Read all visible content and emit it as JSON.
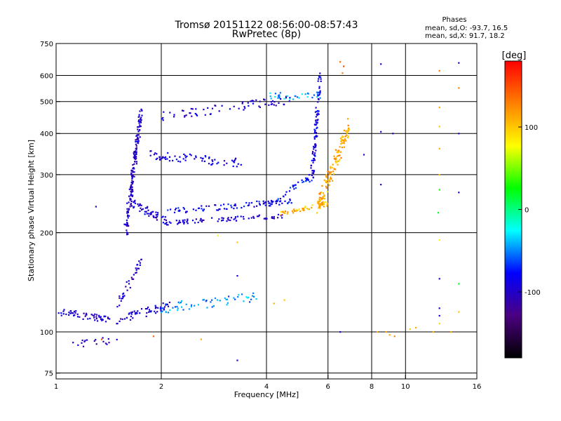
{
  "chart_data": {
    "type": "scatter",
    "title": "Tromsø 20151122 08:56:00-08:57:43",
    "subtitle": "RwPretec (8p)",
    "xlabel": "Frequency [MHz]",
    "ylabel": "Stationary phase Virtual Height [km]",
    "x_scale": "log",
    "y_scale": "log",
    "xlim": [
      1,
      16
    ],
    "ylim": [
      72,
      750
    ],
    "x_ticks": [
      1,
      2,
      4,
      6,
      8,
      10,
      16
    ],
    "x_tick_labels": [
      "1",
      "2",
      "4",
      "6",
      "8",
      "10",
      "16"
    ],
    "y_ticks": [
      75,
      100,
      200,
      300,
      400,
      500,
      600,
      750
    ],
    "y_tick_labels": [
      "75",
      "100",
      "200",
      "300",
      "400",
      "500",
      "600",
      "750"
    ],
    "grid": true,
    "phases_box": {
      "header": "Phases",
      "line_o": "mean, sd,O: -93.7, 16.5",
      "line_x": "mean, sd,X:  91.7, 18.2"
    },
    "colorbar": {
      "title": "[deg]",
      "range": [
        -180,
        180
      ],
      "tick_values": [
        100,
        0,
        -100
      ],
      "tick_labels": [
        "100",
        "0",
        "-100"
      ],
      "colors": [
        "#ff0000",
        "#ff8000",
        "#ffff00",
        "#00ff00",
        "#00ffff",
        "#0000ff",
        "#4b0082",
        "#000000"
      ]
    },
    "traces": [
      {
        "f0": 1.0,
        "f1": 1.55,
        "h0": 115,
        "h1": 108,
        "phase": -100,
        "n": 60,
        "spread": 0.025
      },
      {
        "f0": 1.1,
        "f1": 1.5,
        "h0": 92,
        "h1": 95,
        "phase": -105,
        "n": 18,
        "spread": 0.03
      },
      {
        "f0": 1.5,
        "f1": 1.75,
        "h0": 120,
        "h1": 165,
        "phase": -100,
        "n": 35,
        "spread": 0.03
      },
      {
        "f0": 1.55,
        "f1": 2.1,
        "h0": 110,
        "h1": 120,
        "phase": -95,
        "n": 50,
        "spread": 0.03
      },
      {
        "f0": 2.0,
        "f1": 3.8,
        "h0": 118,
        "h1": 128,
        "phase": -45,
        "n": 60,
        "spread": 0.035
      },
      {
        "f0": 1.58,
        "f1": 1.75,
        "h0": 200,
        "h1": 460,
        "phase": -100,
        "n": 160,
        "spread": 0.06
      },
      {
        "f0": 1.6,
        "f1": 2.1,
        "h0": 250,
        "h1": 215,
        "phase": -95,
        "n": 60,
        "spread": 0.03
      },
      {
        "f0": 2.1,
        "f1": 4.5,
        "h0": 215,
        "h1": 225,
        "phase": -95,
        "n": 70,
        "spread": 0.015
      },
      {
        "f0": 2.1,
        "f1": 4.8,
        "h0": 232,
        "h1": 250,
        "phase": -85,
        "n": 80,
        "spread": 0.02
      },
      {
        "f0": 4.0,
        "f1": 5.5,
        "h0": 240,
        "h1": 300,
        "phase": -80,
        "n": 50,
        "spread": 0.025
      },
      {
        "f0": 4.4,
        "f1": 6.0,
        "h0": 228,
        "h1": 245,
        "phase": 105,
        "n": 50,
        "spread": 0.015
      },
      {
        "f0": 5.4,
        "f1": 5.7,
        "h0": 300,
        "h1": 600,
        "phase": -90,
        "n": 90,
        "spread": 0.04
      },
      {
        "f0": 5.6,
        "f1": 6.9,
        "h0": 240,
        "h1": 420,
        "phase": 110,
        "n": 140,
        "spread": 0.06
      },
      {
        "f0": 1.85,
        "f1": 3.4,
        "h0": 345,
        "h1": 325,
        "phase": -90,
        "n": 70,
        "spread": 0.03
      },
      {
        "f0": 2.0,
        "f1": 4.8,
        "h0": 450,
        "h1": 510,
        "phase": -95,
        "n": 70,
        "spread": 0.03
      },
      {
        "f0": 4.1,
        "f1": 5.7,
        "h0": 520,
        "h1": 520,
        "phase": -40,
        "n": 30,
        "spread": 0.03
      }
    ],
    "sparse_points": [
      [
        6.5,
        660,
        140
      ],
      [
        6.6,
        610,
        130
      ],
      [
        6.65,
        640,
        150
      ],
      [
        8.5,
        650,
        -100
      ],
      [
        12.5,
        620,
        130
      ],
      [
        12.5,
        480,
        115
      ],
      [
        12.5,
        420,
        100
      ],
      [
        12.5,
        360,
        110
      ],
      [
        12.5,
        300,
        100
      ],
      [
        12.5,
        270,
        30
      ],
      [
        12.4,
        230,
        20
      ],
      [
        12.5,
        190,
        80
      ],
      [
        12.5,
        145,
        -100
      ],
      [
        12.5,
        118,
        -100
      ],
      [
        12.5,
        112,
        -90
      ],
      [
        12.5,
        106,
        95
      ],
      [
        14.2,
        655,
        -100
      ],
      [
        14.2,
        550,
        130
      ],
      [
        14.2,
        400,
        -100
      ],
      [
        14.2,
        265,
        -100
      ],
      [
        14.2,
        140,
        20
      ],
      [
        14.2,
        115,
        100
      ],
      [
        8.5,
        280,
        -110
      ],
      [
        8.5,
        405,
        -100
      ],
      [
        9.2,
        400,
        -100
      ],
      [
        7.6,
        345,
        -100
      ],
      [
        8.3,
        100,
        110
      ],
      [
        8.8,
        100,
        110
      ],
      [
        9.0,
        98,
        110
      ],
      [
        9.3,
        97,
        130
      ],
      [
        10.3,
        102,
        100
      ],
      [
        10.7,
        103,
        110
      ],
      [
        12.0,
        100,
        110
      ],
      [
        13.5,
        100,
        110
      ],
      [
        6.5,
        100,
        -100
      ],
      [
        3.3,
        82,
        -100
      ],
      [
        2.6,
        95,
        110
      ],
      [
        1.9,
        97,
        140
      ],
      [
        1.35,
        95,
        150
      ],
      [
        1.3,
        240,
        -110
      ],
      [
        3.3,
        148,
        -90
      ],
      [
        3.3,
        187,
        100
      ],
      [
        2.9,
        196,
        80
      ],
      [
        4.5,
        125,
        100
      ],
      [
        4.2,
        122,
        110
      ]
    ]
  }
}
